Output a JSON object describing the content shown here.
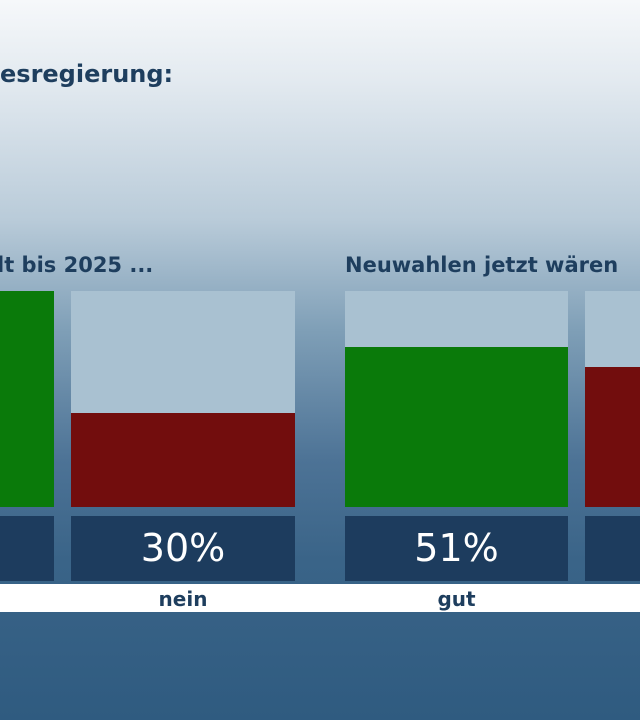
{
  "heading": "esregierung:",
  "colors": {
    "positive": "#0a7a0a",
    "negative": "#720d0d",
    "background_bar": "#a9c1d1",
    "value_box": "#1d3c5e"
  },
  "chart_data": [
    {
      "type": "bar",
      "title": "lt bis 2025 ...",
      "categories": [
        "",
        "nein"
      ],
      "values": [
        null,
        30
      ],
      "value_labels": [
        "",
        "30%"
      ],
      "ylim": [
        0,
        100
      ]
    },
    {
      "type": "bar",
      "title": "Neuwahlen jetzt wären",
      "categories": [
        "gut",
        ""
      ],
      "values": [
        51,
        null
      ],
      "value_labels": [
        "51%",
        ""
      ],
      "ylim": [
        0,
        100
      ]
    }
  ]
}
